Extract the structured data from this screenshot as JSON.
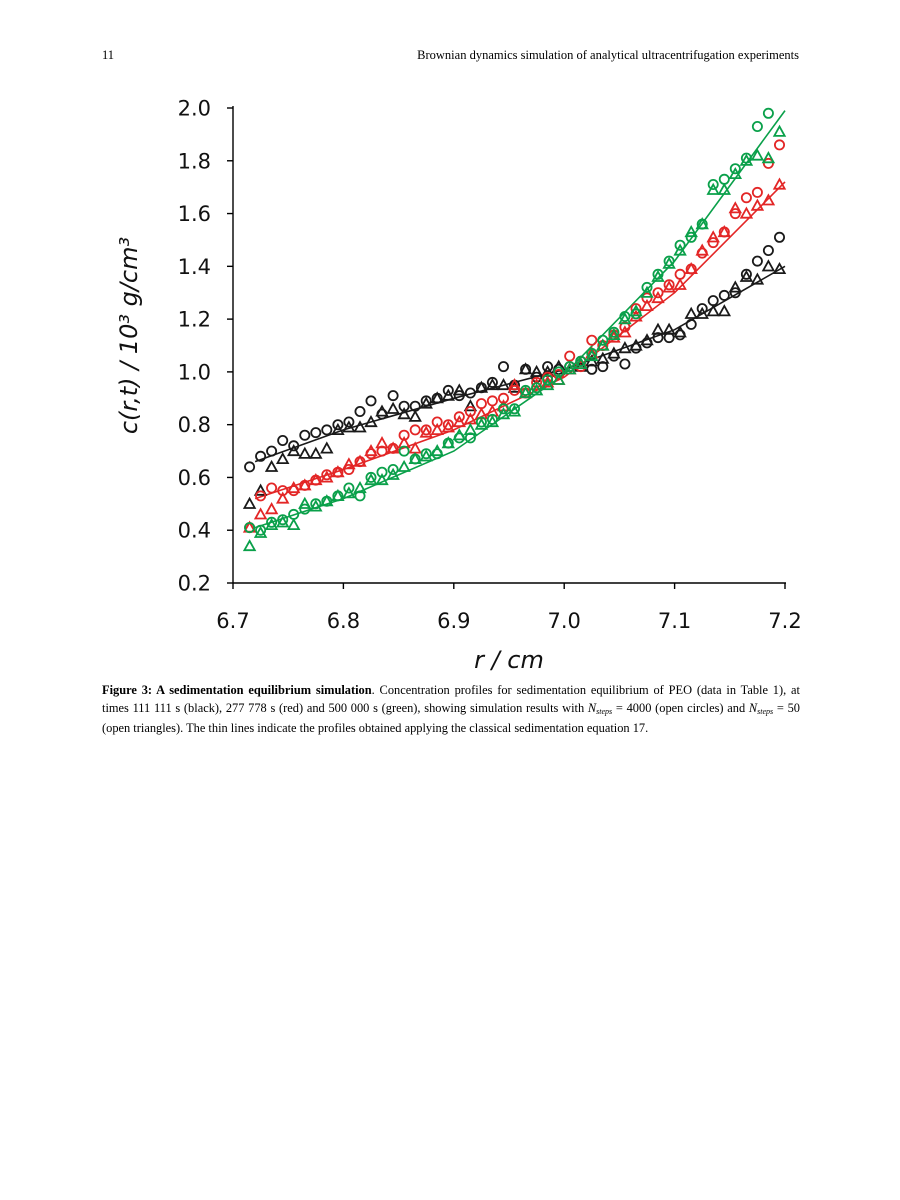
{
  "header": {
    "page_number": "11",
    "running_title": "Brownian dynamics simulation of analytical ultracentrifugation experiments"
  },
  "chart_data": {
    "type": "scatter",
    "title": "",
    "xlabel": "r / cm",
    "ylabel": "c(r,t)  / 10³ g/cm³",
    "xlim": [
      6.7,
      7.2
    ],
    "ylim": [
      0.2,
      2.0
    ],
    "x_ticks": [
      "6.7",
      "6.8",
      "6.9",
      "7.0",
      "7.1",
      "7.2"
    ],
    "y_ticks": [
      "0.2",
      "0.4",
      "0.6",
      "0.8",
      "1.0",
      "1.2",
      "1.4",
      "1.6",
      "1.8",
      "2.0"
    ],
    "grid": false,
    "legend": "none",
    "colors": {
      "black": "#1a1a1a",
      "red": "#e32626",
      "green": "#0aa04a"
    },
    "series": [
      {
        "time_color": "black",
        "marker": "circle",
        "x": [
          6.715,
          6.725,
          6.735,
          6.745,
          6.755,
          6.765,
          6.775,
          6.785,
          6.795,
          6.805,
          6.815,
          6.825,
          6.835,
          6.845,
          6.855,
          6.865,
          6.875,
          6.885,
          6.895,
          6.905,
          6.915,
          6.925,
          6.935,
          6.945,
          6.955,
          6.965,
          6.975,
          6.985,
          6.995,
          7.005,
          7.015,
          7.025,
          7.035,
          7.045,
          7.055,
          7.065,
          7.075,
          7.085,
          7.095,
          7.105,
          7.115,
          7.125,
          7.135,
          7.145,
          7.155,
          7.165,
          7.175,
          7.185,
          7.195
        ],
        "y": [
          0.64,
          0.68,
          0.7,
          0.74,
          0.72,
          0.76,
          0.77,
          0.78,
          0.8,
          0.81,
          0.85,
          0.89,
          0.84,
          0.91,
          0.87,
          0.87,
          0.89,
          0.9,
          0.93,
          0.91,
          0.92,
          0.94,
          0.96,
          1.02,
          0.95,
          1.01,
          0.98,
          1.02,
          1.01,
          1.02,
          1.04,
          1.01,
          1.02,
          1.06,
          1.03,
          1.09,
          1.11,
          1.13,
          1.13,
          1.14,
          1.18,
          1.24,
          1.27,
          1.29,
          1.3,
          1.37,
          1.42,
          1.46,
          1.51
        ]
      },
      {
        "time_color": "black",
        "marker": "triangle",
        "x": [
          6.715,
          6.725,
          6.735,
          6.745,
          6.755,
          6.765,
          6.775,
          6.785,
          6.795,
          6.805,
          6.815,
          6.825,
          6.835,
          6.845,
          6.855,
          6.865,
          6.875,
          6.885,
          6.895,
          6.905,
          6.915,
          6.925,
          6.935,
          6.945,
          6.955,
          6.965,
          6.975,
          6.985,
          6.995,
          7.005,
          7.015,
          7.025,
          7.035,
          7.045,
          7.055,
          7.065,
          7.075,
          7.085,
          7.095,
          7.105,
          7.115,
          7.125,
          7.135,
          7.145,
          7.155,
          7.165,
          7.175,
          7.185,
          7.195
        ],
        "y": [
          0.5,
          0.55,
          0.64,
          0.67,
          0.7,
          0.69,
          0.69,
          0.71,
          0.78,
          0.79,
          0.79,
          0.81,
          0.85,
          0.86,
          0.84,
          0.83,
          0.88,
          0.9,
          0.91,
          0.93,
          0.87,
          0.94,
          0.95,
          0.95,
          0.94,
          1.01,
          1.0,
          1.0,
          1.02,
          1.01,
          1.02,
          1.04,
          1.05,
          1.07,
          1.09,
          1.1,
          1.12,
          1.16,
          1.16,
          1.15,
          1.22,
          1.22,
          1.23,
          1.23,
          1.32,
          1.36,
          1.35,
          1.4,
          1.39
        ]
      },
      {
        "time_color": "red",
        "marker": "circle",
        "x": [
          6.715,
          6.725,
          6.735,
          6.745,
          6.755,
          6.765,
          6.775,
          6.785,
          6.795,
          6.805,
          6.815,
          6.825,
          6.835,
          6.845,
          6.855,
          6.865,
          6.875,
          6.885,
          6.895,
          6.905,
          6.915,
          6.925,
          6.935,
          6.945,
          6.955,
          6.965,
          6.975,
          6.985,
          6.995,
          7.005,
          7.015,
          7.025,
          7.035,
          7.045,
          7.055,
          7.065,
          7.075,
          7.085,
          7.095,
          7.105,
          7.115,
          7.125,
          7.135,
          7.145,
          7.155,
          7.165,
          7.175,
          7.185,
          7.195
        ],
        "y": [
          0.41,
          0.53,
          0.56,
          0.55,
          0.55,
          0.57,
          0.59,
          0.61,
          0.62,
          0.63,
          0.66,
          0.69,
          0.7,
          0.71,
          0.76,
          0.78,
          0.78,
          0.81,
          0.8,
          0.83,
          0.85,
          0.88,
          0.89,
          0.9,
          0.93,
          0.92,
          0.96,
          0.98,
          0.99,
          1.06,
          1.02,
          1.12,
          1.1,
          1.14,
          1.17,
          1.24,
          1.28,
          1.3,
          1.33,
          1.37,
          1.39,
          1.45,
          1.49,
          1.53,
          1.6,
          1.66,
          1.68,
          1.79,
          1.86
        ]
      },
      {
        "time_color": "red",
        "marker": "triangle",
        "x": [
          6.715,
          6.725,
          6.735,
          6.745,
          6.755,
          6.765,
          6.775,
          6.785,
          6.795,
          6.805,
          6.815,
          6.825,
          6.835,
          6.845,
          6.855,
          6.865,
          6.875,
          6.885,
          6.895,
          6.905,
          6.915,
          6.925,
          6.935,
          6.945,
          6.955,
          6.965,
          6.975,
          6.985,
          6.995,
          7.005,
          7.015,
          7.025,
          7.035,
          7.045,
          7.055,
          7.065,
          7.075,
          7.085,
          7.095,
          7.105,
          7.115,
          7.125,
          7.135,
          7.145,
          7.155,
          7.165,
          7.175,
          7.185,
          7.195
        ],
        "y": [
          0.41,
          0.46,
          0.48,
          0.52,
          0.56,
          0.57,
          0.59,
          0.6,
          0.62,
          0.65,
          0.66,
          0.7,
          0.73,
          0.71,
          0.73,
          0.71,
          0.77,
          0.78,
          0.79,
          0.81,
          0.82,
          0.84,
          0.85,
          0.87,
          0.95,
          0.92,
          0.95,
          0.96,
          0.97,
          1.01,
          1.03,
          1.07,
          1.1,
          1.13,
          1.15,
          1.21,
          1.25,
          1.28,
          1.32,
          1.33,
          1.39,
          1.46,
          1.51,
          1.53,
          1.62,
          1.6,
          1.63,
          1.65,
          1.71
        ]
      },
      {
        "time_color": "green",
        "marker": "circle",
        "x": [
          6.715,
          6.725,
          6.735,
          6.745,
          6.755,
          6.765,
          6.775,
          6.785,
          6.795,
          6.805,
          6.815,
          6.825,
          6.835,
          6.845,
          6.855,
          6.865,
          6.875,
          6.885,
          6.895,
          6.905,
          6.915,
          6.925,
          6.935,
          6.945,
          6.955,
          6.965,
          6.975,
          6.985,
          6.995,
          7.005,
          7.015,
          7.025,
          7.035,
          7.045,
          7.055,
          7.065,
          7.075,
          7.085,
          7.095,
          7.105,
          7.115,
          7.125,
          7.135,
          7.145,
          7.155,
          7.165,
          7.175,
          7.185
        ],
        "y": [
          0.41,
          0.4,
          0.43,
          0.44,
          0.46,
          0.48,
          0.5,
          0.51,
          0.53,
          0.56,
          0.53,
          0.6,
          0.62,
          0.63,
          0.7,
          0.67,
          0.69,
          0.69,
          0.73,
          0.75,
          0.75,
          0.81,
          0.82,
          0.86,
          0.86,
          0.93,
          0.94,
          0.97,
          1.0,
          1.02,
          1.04,
          1.07,
          1.12,
          1.15,
          1.21,
          1.22,
          1.32,
          1.37,
          1.42,
          1.48,
          1.51,
          1.56,
          1.71,
          1.73,
          1.77,
          1.81,
          1.93,
          1.98
        ]
      },
      {
        "time_color": "green",
        "marker": "triangle",
        "x": [
          6.715,
          6.725,
          6.735,
          6.745,
          6.755,
          6.765,
          6.775,
          6.785,
          6.795,
          6.805,
          6.815,
          6.825,
          6.835,
          6.845,
          6.855,
          6.865,
          6.875,
          6.885,
          6.895,
          6.905,
          6.915,
          6.925,
          6.935,
          6.945,
          6.955,
          6.965,
          6.975,
          6.985,
          6.995,
          7.005,
          7.015,
          7.025,
          7.035,
          7.045,
          7.055,
          7.065,
          7.075,
          7.085,
          7.095,
          7.105,
          7.115,
          7.125,
          7.135,
          7.145,
          7.155,
          7.165,
          7.175,
          7.185,
          7.195
        ],
        "y": [
          0.34,
          0.39,
          0.42,
          0.43,
          0.42,
          0.5,
          0.49,
          0.51,
          0.53,
          0.54,
          0.56,
          0.59,
          0.59,
          0.61,
          0.64,
          0.67,
          0.68,
          0.7,
          0.73,
          0.76,
          0.78,
          0.8,
          0.81,
          0.84,
          0.85,
          0.92,
          0.93,
          0.95,
          0.97,
          1.01,
          1.03,
          1.06,
          1.1,
          1.14,
          1.2,
          1.23,
          1.3,
          1.36,
          1.41,
          1.46,
          1.53,
          1.56,
          1.69,
          1.69,
          1.75,
          1.8,
          1.82,
          1.81,
          1.91
        ]
      }
    ],
    "fit_lines": [
      {
        "time_color": "black",
        "x": [
          6.72,
          6.8,
          6.9,
          7.0,
          7.1,
          7.2
        ],
        "y": [
          0.66,
          0.78,
          0.9,
          1.01,
          1.16,
          1.4
        ]
      },
      {
        "time_color": "red",
        "x": [
          6.72,
          6.8,
          6.9,
          7.0,
          7.1,
          7.2
        ],
        "y": [
          0.52,
          0.63,
          0.78,
          0.98,
          1.3,
          1.72
        ]
      },
      {
        "time_color": "green",
        "x": [
          6.72,
          6.8,
          6.9,
          7.0,
          7.1,
          7.2
        ],
        "y": [
          0.41,
          0.52,
          0.7,
          0.99,
          1.42,
          1.99
        ]
      }
    ]
  },
  "caption": {
    "label": "Figure 3: A sedimentation equilibrium simulation",
    "part1": ". Concentration profiles for sedimentation equilibrium of PEO (data in Table 1), at times 111 111 s (black), 277 778 s (red) and 500 000 s (green), showing simulation results with ",
    "n1": "N",
    "sub1": "steps",
    "part2": " = 4000 (open circles) and ",
    "n2": "N",
    "sub2": "steps",
    "part3": " = 50 (open triangles). The thin lines indicate the profiles obtained applying the classical sedimentation equation 17."
  }
}
